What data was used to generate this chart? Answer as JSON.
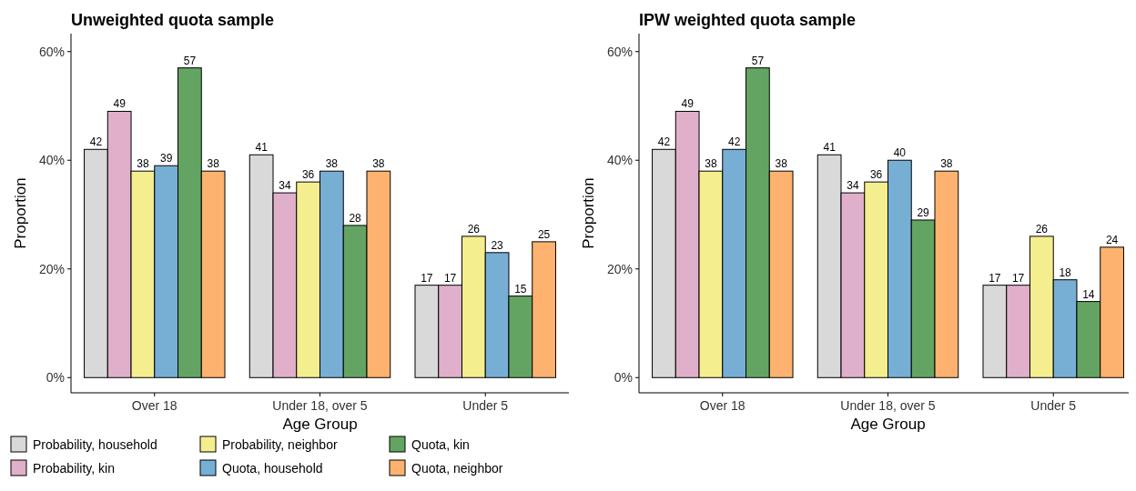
{
  "chart_data": [
    {
      "type": "bar",
      "title": "Unweighted quota sample",
      "xlabel": "Age Group",
      "ylabel": "Proportion",
      "categories": [
        "Over 18",
        "Under 18, over 5",
        "Under 5"
      ],
      "series": [
        {
          "name": "Probability, household",
          "color": "#d9d9d9",
          "values": [
            42,
            41,
            17
          ]
        },
        {
          "name": "Probability, kin",
          "color": "#e0afca",
          "values": [
            49,
            34,
            17
          ]
        },
        {
          "name": "Probability, neighbor",
          "color": "#f4ee8e",
          "values": [
            38,
            36,
            26
          ]
        },
        {
          "name": "Quota, household",
          "color": "#77aed4",
          "values": [
            39,
            38,
            23
          ]
        },
        {
          "name": "Quota, kin",
          "color": "#64a462",
          "values": [
            57,
            28,
            15
          ]
        },
        {
          "name": "Quota, neighbor",
          "color": "#fdb26f",
          "values": [
            38,
            38,
            25
          ]
        }
      ],
      "ylim": [
        -2.8,
        63.3
      ],
      "yticks": [
        {
          "value": 0,
          "label": "0%"
        },
        {
          "value": 20,
          "label": "20%"
        },
        {
          "value": 40,
          "label": "40%"
        },
        {
          "value": 60,
          "label": "60%"
        }
      ],
      "data_labels": true,
      "legend": "bottom"
    },
    {
      "type": "bar",
      "title": "IPW weighted quota sample",
      "xlabel": "Age Group",
      "ylabel": "Proportion",
      "categories": [
        "Over 18",
        "Under 18, over 5",
        "Under 5"
      ],
      "series": [
        {
          "color": "#d9d9d9",
          "values": [
            42,
            41,
            17
          ]
        },
        {
          "color": "#e0afca",
          "values": [
            49,
            34,
            17
          ]
        },
        {
          "color": "#f4ee8e",
          "values": [
            38,
            36,
            26
          ]
        },
        {
          "color": "#77aed4",
          "values": [
            42,
            40,
            18
          ]
        },
        {
          "color": "#64a462",
          "values": [
            57,
            29,
            14
          ]
        },
        {
          "color": "#fdb26f",
          "values": [
            38,
            38,
            24
          ]
        }
      ],
      "ylim": [
        -2.8,
        63.3
      ],
      "yticks": [
        {
          "value": 0,
          "label": "0%"
        },
        {
          "value": 20,
          "label": "20%"
        },
        {
          "value": 40,
          "label": "40%"
        },
        {
          "value": 60,
          "label": "60%"
        }
      ],
      "data_labels": true
    }
  ]
}
